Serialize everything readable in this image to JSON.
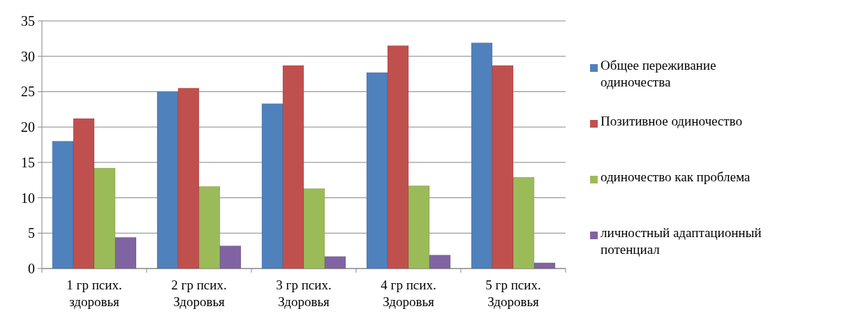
{
  "chart_data": {
    "type": "bar",
    "categories": [
      "1 гр псих. здоровья",
      "2 гр псих. Здоровья",
      "3 гр псих. Здоровья",
      "4 гр псих. Здоровья",
      "5 гр псих. Здоровья"
    ],
    "series": [
      {
        "name": "Общее переживание одиночества",
        "color": "#4f81bd",
        "values": [
          18,
          25,
          23.3,
          27.7,
          31.9
        ]
      },
      {
        "name": "Позитивное одиночество",
        "color": "#c0504d",
        "values": [
          21.2,
          25.5,
          28.7,
          31.5,
          28.7
        ]
      },
      {
        "name": "одиночество как проблема",
        "color": "#9bbb59",
        "values": [
          14.2,
          11.6,
          11.3,
          11.7,
          12.9
        ]
      },
      {
        "name": "личностный адаптационный потенциал",
        "color": "#8064a2",
        "values": [
          4.4,
          3.2,
          1.7,
          1.9,
          0.8
        ]
      }
    ],
    "ylim": [
      0,
      35
    ],
    "yticks": [
      0,
      5,
      10,
      15,
      20,
      25,
      30,
      35
    ],
    "grid": "y",
    "legend": "right"
  }
}
